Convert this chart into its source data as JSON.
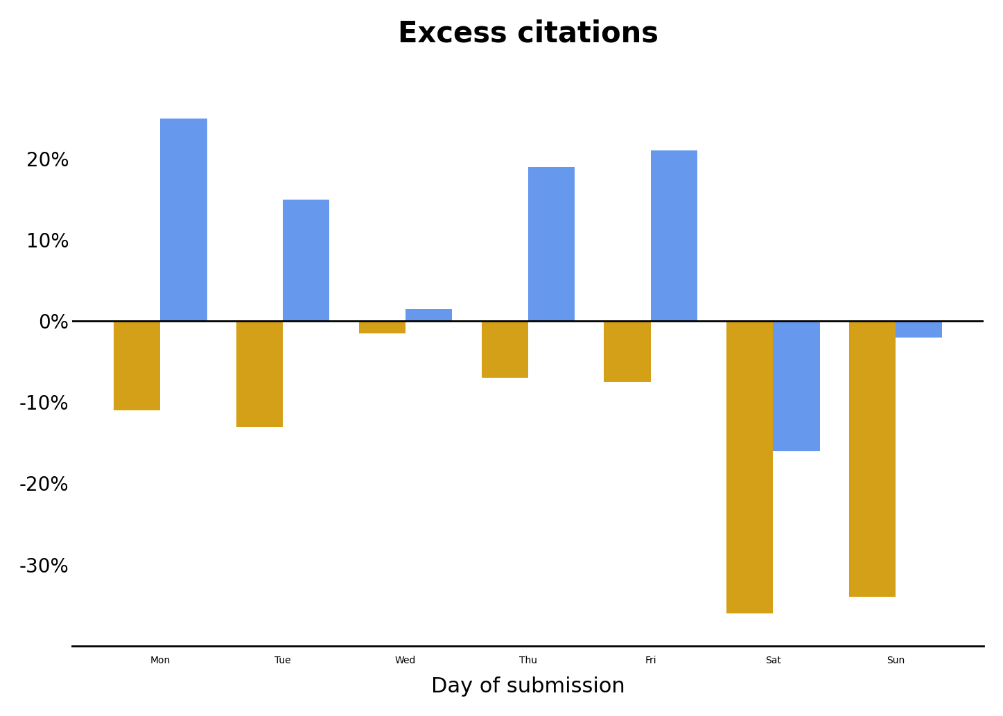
{
  "title": "Excess citations",
  "xlabel": "Day of submission",
  "categories": [
    "Mon",
    "Tue",
    "Wed",
    "Thu",
    "Fri",
    "Sat",
    "Sun"
  ],
  "blue_values": [
    25,
    15,
    1.5,
    19,
    21,
    -16,
    -2
  ],
  "gold_values": [
    -11,
    -13,
    -1.5,
    -7,
    -7.5,
    -36,
    -34
  ],
  "color_blue": "#6699ee",
  "color_gold": "#d4a017",
  "ylim": [
    -40,
    32
  ],
  "yticks": [
    -30,
    -20,
    -10,
    0,
    10,
    20
  ],
  "background_color": "#ffffff",
  "title_fontsize": 30,
  "axis_label_fontsize": 22,
  "tick_fontsize": 20,
  "bar_width": 0.38
}
